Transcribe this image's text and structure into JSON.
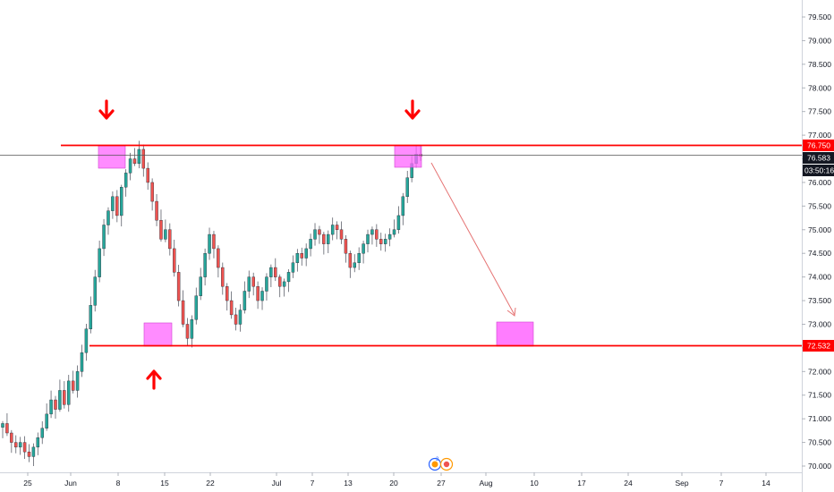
{
  "chart_data": {
    "type": "candlestick",
    "title": "",
    "xlabel": "",
    "ylabel": "",
    "ylim": [
      69.9,
      79.8
    ],
    "y_ticks": [
      "70.000",
      "70.500",
      "71.000",
      "71.500",
      "72.000",
      "72.500",
      "73.000",
      "73.500",
      "74.000",
      "74.500",
      "75.000",
      "75.500",
      "76.000",
      "76.500",
      "77.000",
      "77.500",
      "78.000",
      "78.500",
      "79.000",
      "79.500"
    ],
    "x_ticks": [
      "25",
      "Jun",
      "8",
      "15",
      "22",
      "Jul",
      "7",
      "13",
      "20",
      "27",
      "Aug",
      "10",
      "17",
      "24",
      "Sep",
      "7",
      "14"
    ],
    "grid": false,
    "colors": {
      "up": "#26a69a",
      "down": "#ef5350",
      "level": "#ff0000",
      "zone": "#ff66ff",
      "current": "#131722",
      "arrow": "#ff0000",
      "projection": "#e57373"
    },
    "levels": [
      {
        "value": 76.75,
        "label": "76.750"
      },
      {
        "value": 72.532,
        "label": "72.532"
      }
    ],
    "current_price": {
      "value": 76.583,
      "label": "76.583",
      "countdown": "03:50:16"
    },
    "annotations": {
      "resistance_zones": [
        "Jun 5–Jun 9 top",
        "Jul 20–Jul 23 top"
      ],
      "support_zone": "Jun 11–Jun 15 low",
      "target_zone": "Aug 3–Aug 9 near 72.53–73.05",
      "arrows_down": 2,
      "arrows_up": 1,
      "icon_badges": [
        "flag-icon",
        "calendar-icon"
      ],
      "badge_count": "3"
    },
    "candles_close": [
      70.9,
      70.7,
      70.5,
      70.4,
      70.5,
      70.3,
      70.2,
      70.4,
      70.6,
      70.8,
      71.1,
      71.4,
      71.2,
      71.6,
      71.3,
      71.8,
      71.6,
      72.0,
      72.4,
      72.9,
      73.4,
      74.0,
      74.6,
      75.1,
      75.4,
      75.7,
      75.3,
      75.9,
      76.2,
      76.5,
      76.4,
      76.7,
      76.3,
      76.0,
      75.6,
      75.2,
      74.8,
      75.0,
      74.6,
      74.1,
      73.5,
      73.0,
      72.7,
      73.1,
      73.6,
      74.0,
      74.5,
      74.9,
      74.6,
      74.2,
      73.8,
      73.5,
      73.2,
      73.0,
      73.3,
      73.7,
      74.0,
      73.8,
      73.5,
      73.7,
      74.0,
      74.2,
      74.0,
      73.8,
      73.9,
      74.1,
      74.3,
      74.5,
      74.4,
      74.6,
      74.8,
      75.0,
      74.9,
      74.7,
      74.9,
      75.1,
      75.0,
      74.8,
      74.5,
      74.2,
      74.3,
      74.5,
      74.7,
      74.9,
      75.0,
      74.8,
      74.7,
      74.8,
      74.9,
      75.0,
      75.3,
      75.7,
      76.1,
      76.4,
      76.6,
      76.55
    ]
  }
}
